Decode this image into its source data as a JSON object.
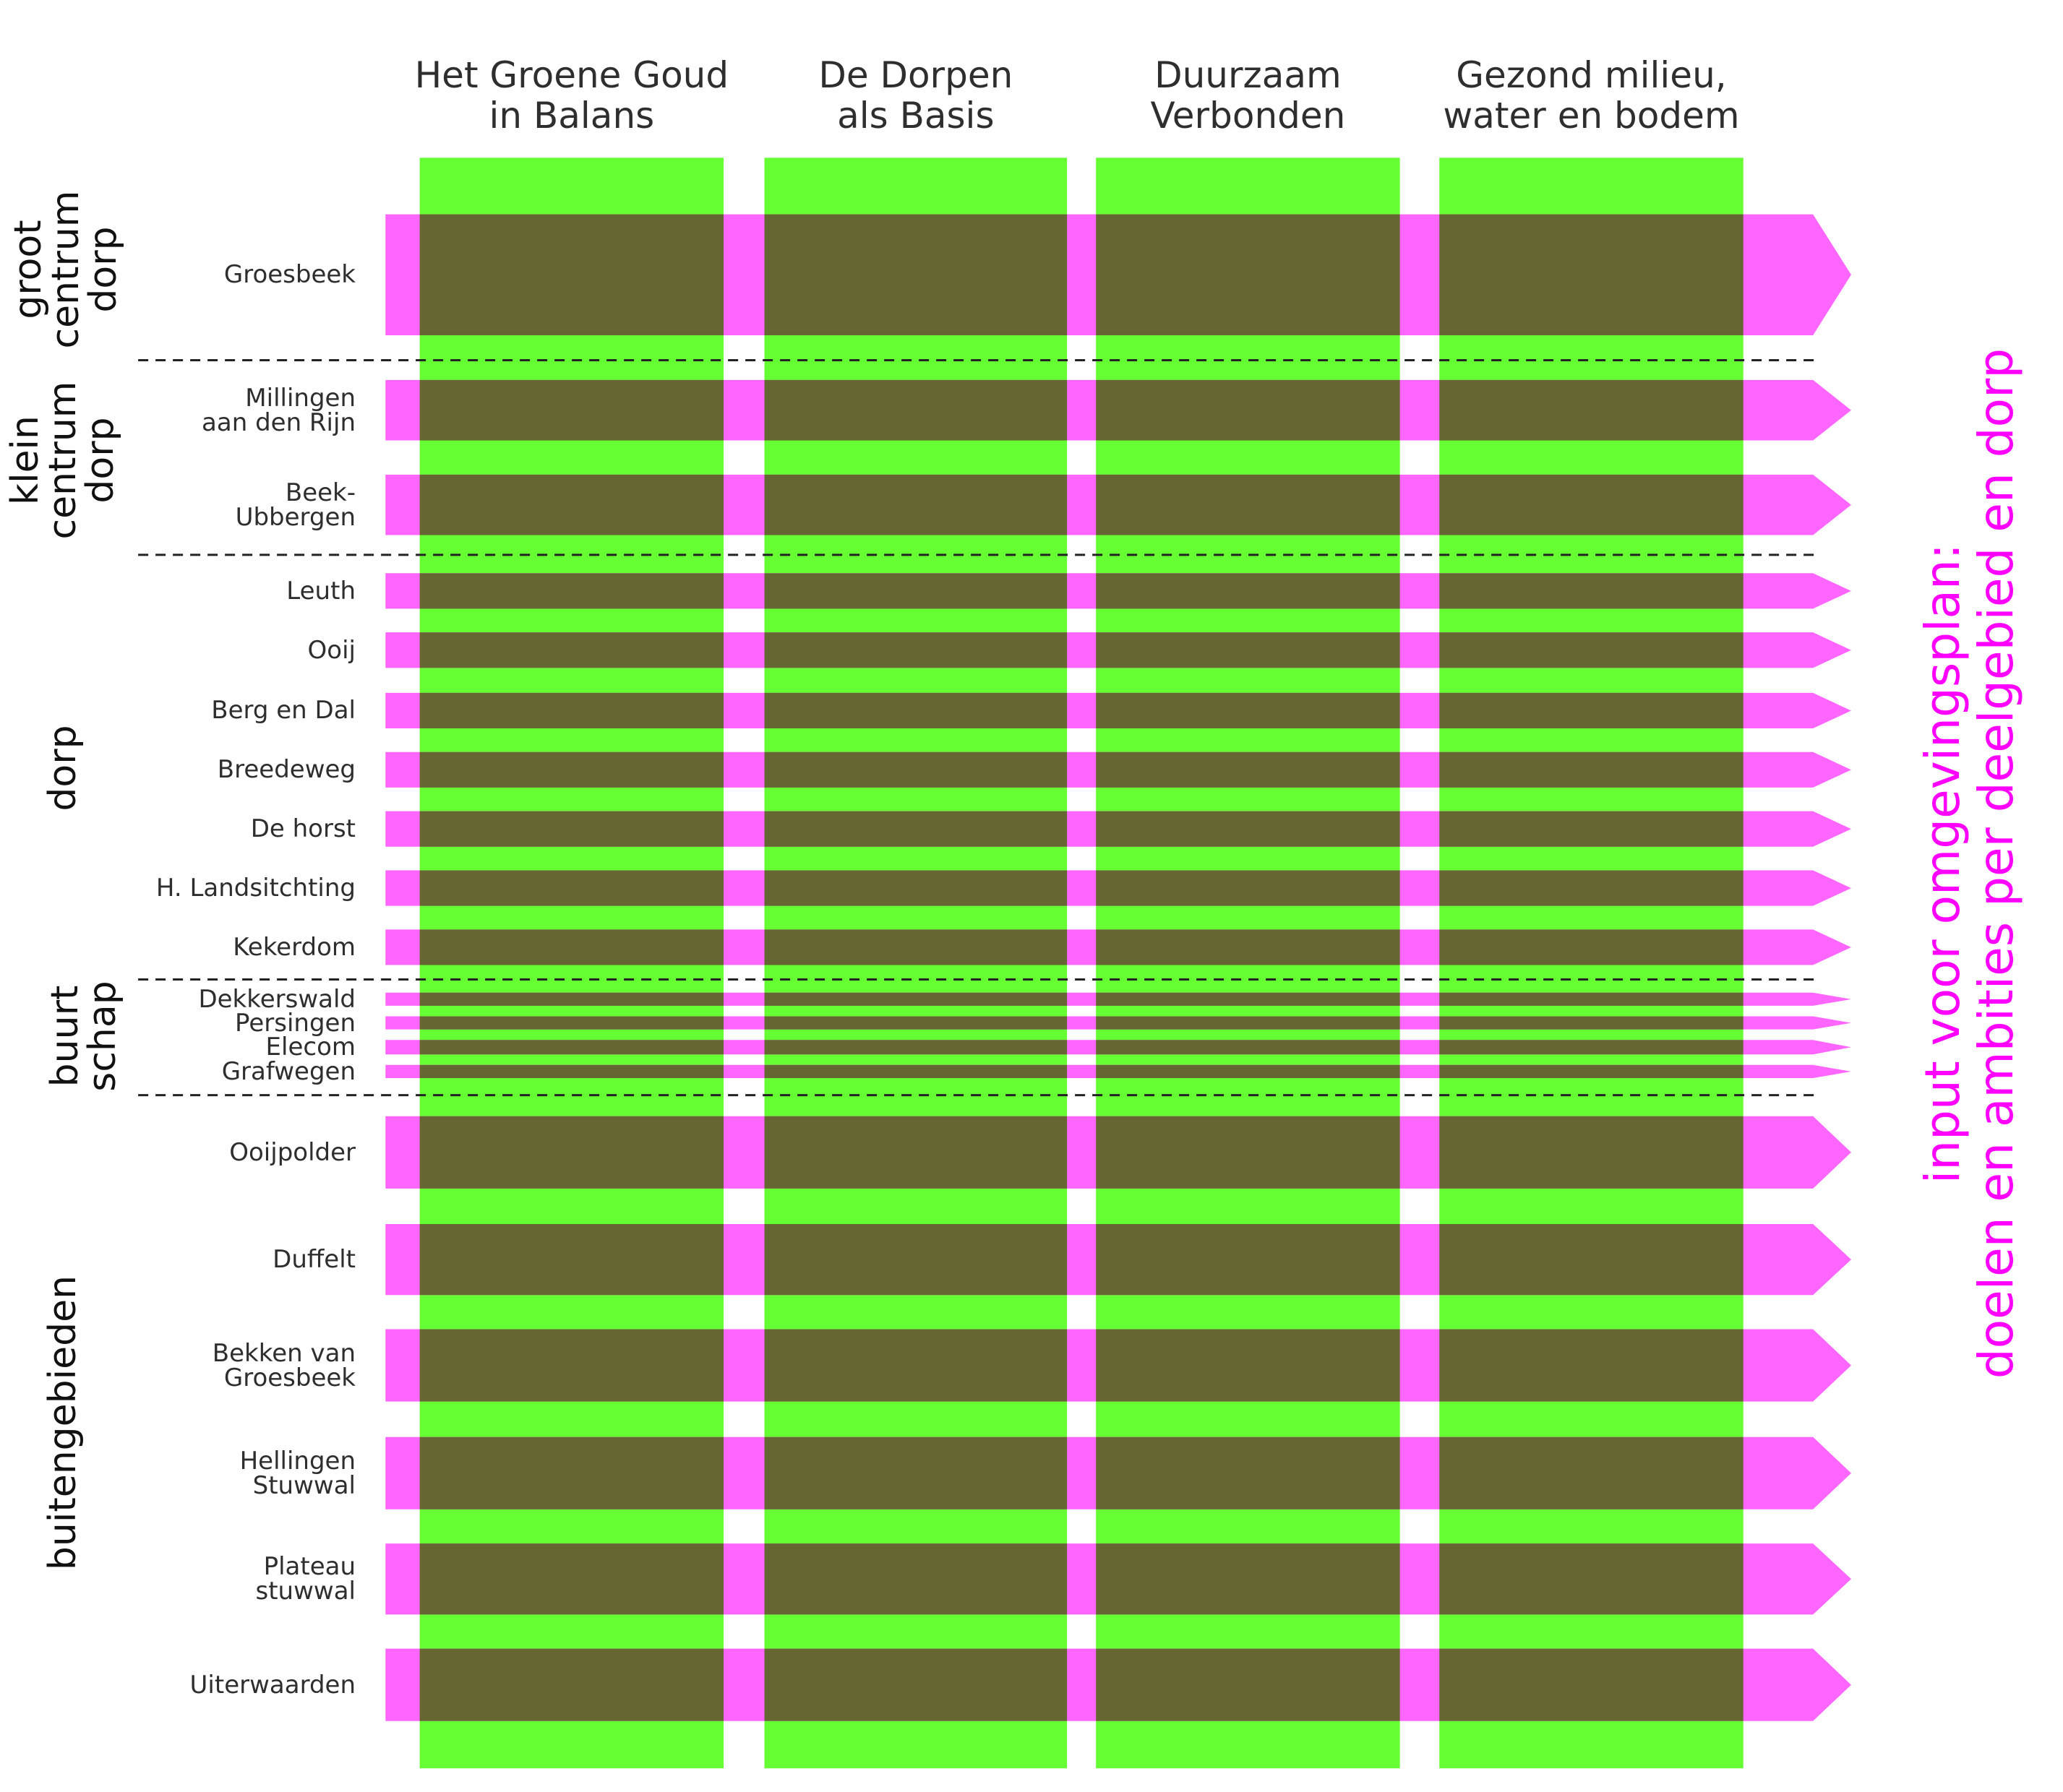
{
  "colors": {
    "green": "#66ff33",
    "olive": "#666633",
    "magenta": "#ff66ff",
    "caption": "#ff00ff",
    "divider": "#222222"
  },
  "columns": [
    {
      "label": "Het Groene Goud\nin Balans"
    },
    {
      "label": "De Dorpen\nals Basis"
    },
    {
      "label": "Duurzaam\nVerbonden"
    },
    {
      "label": "Gezond milieu,\nwater en bodem"
    }
  ],
  "categories": [
    {
      "label": "groot\ncentrum\ndorp"
    },
    {
      "label": "klein\ncentrum\ndorp"
    },
    {
      "label": "dorp"
    },
    {
      "label": "buurt\nschap"
    },
    {
      "label": "buitengebieden"
    }
  ],
  "rows": [
    {
      "label": "Groesbeek",
      "category": 0
    },
    {
      "label": "Millingen\naan den Rijn",
      "category": 1
    },
    {
      "label": "Beek-\nUbbergen",
      "category": 1
    },
    {
      "label": "Leuth",
      "category": 2
    },
    {
      "label": "Ooij",
      "category": 2
    },
    {
      "label": "Berg en Dal",
      "category": 2
    },
    {
      "label": "Breedeweg",
      "category": 2
    },
    {
      "label": "De horst",
      "category": 2
    },
    {
      "label": "H. Landsitchting",
      "category": 2
    },
    {
      "label": "Kekerdom",
      "category": 2
    },
    {
      "label": "Dekkerswald",
      "category": 3
    },
    {
      "label": "Persingen",
      "category": 3
    },
    {
      "label": "Elecom",
      "category": 3
    },
    {
      "label": "Grafwegen",
      "category": 3
    },
    {
      "label": "Ooijpolder",
      "category": 4
    },
    {
      "label": "Duffelt",
      "category": 4
    },
    {
      "label": "Bekken van\nGroesbeek",
      "category": 4
    },
    {
      "label": "Hellingen\nStuwwal",
      "category": 4
    },
    {
      "label": "Plateau\nstuwwal",
      "category": 4
    },
    {
      "label": "Uiterwaarden",
      "category": 4
    }
  ],
  "side_caption": {
    "line1": "input voor omgevingsplan:",
    "line2": "doelen en ambities per deelgebied en dorp"
  }
}
